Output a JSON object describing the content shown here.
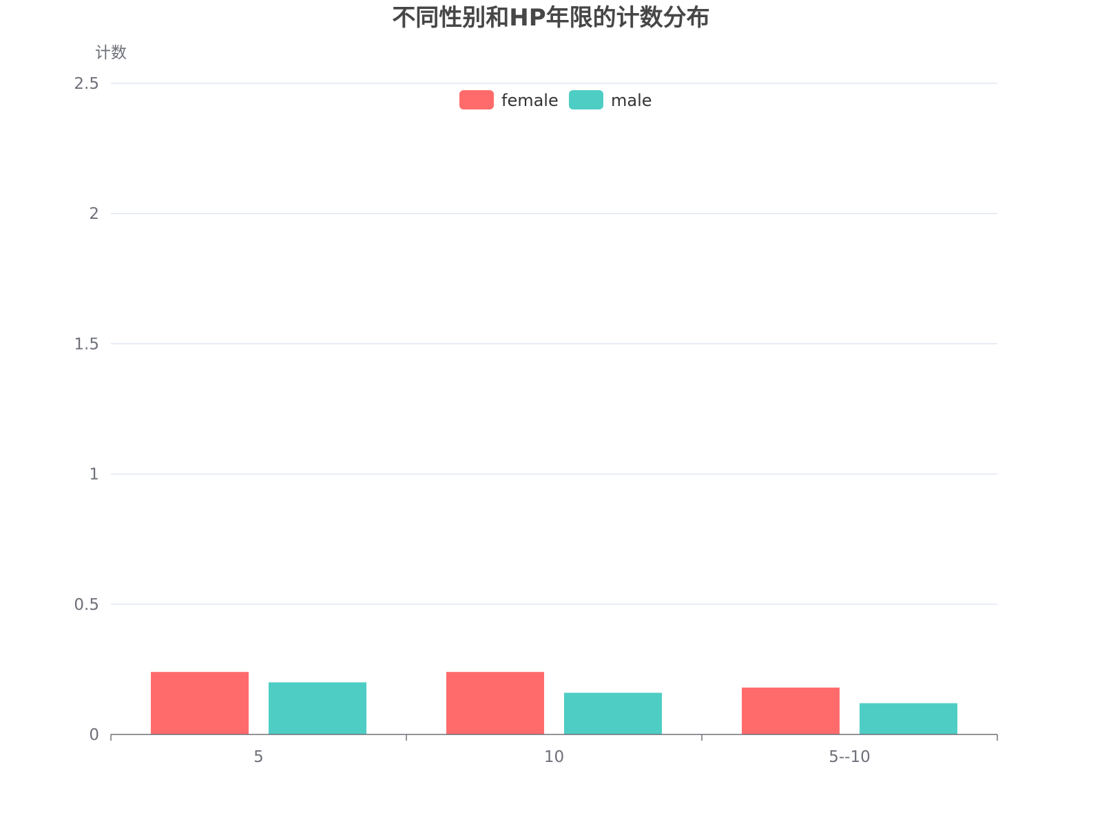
{
  "chart_data": {
    "type": "bar",
    "title": "不同性别和HP年限的计数分布",
    "ylabel": "计数",
    "xlabel": "",
    "categories": [
      "5",
      "10",
      "5--10"
    ],
    "series": [
      {
        "name": "female",
        "color": "#ff6b6b",
        "values": [
          0.24,
          0.24,
          0.18
        ]
      },
      {
        "name": "male",
        "color": "#4ecdc4",
        "values": [
          0.2,
          0.16,
          0.12
        ]
      }
    ],
    "ylim": [
      0,
      2.5
    ],
    "yticks": [
      "0",
      "0.5",
      "1",
      "1.5",
      "2",
      "2.5"
    ],
    "grid": true,
    "legend_position": "top-center"
  }
}
